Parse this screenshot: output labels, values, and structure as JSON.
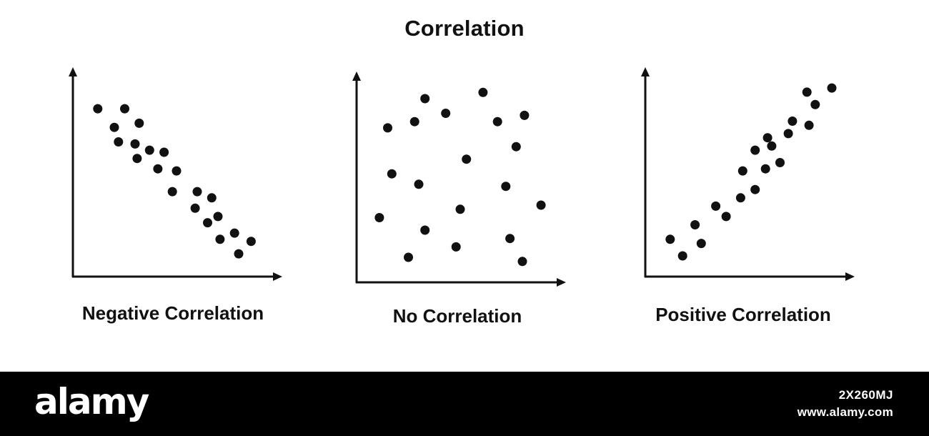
{
  "title": "Correlation",
  "colors": {
    "marker": "#111111",
    "axis": "#111111",
    "background": "#ffffff",
    "footer": "#000000",
    "footer_text": "#ffffff"
  },
  "chart_data": [
    {
      "type": "scatter",
      "title": "Negative Correlation",
      "xlabel": "",
      "ylabel": "",
      "xlim": [
        0,
        100
      ],
      "ylim": [
        0,
        100
      ],
      "ticks": false,
      "grid": false,
      "points": [
        [
          12,
          81
        ],
        [
          25,
          81
        ],
        [
          20,
          72
        ],
        [
          32,
          74
        ],
        [
          22,
          65
        ],
        [
          30,
          64
        ],
        [
          37,
          61
        ],
        [
          44,
          60
        ],
        [
          31,
          57
        ],
        [
          41,
          52
        ],
        [
          50,
          51
        ],
        [
          48,
          41
        ],
        [
          60,
          41
        ],
        [
          67,
          38
        ],
        [
          59,
          33
        ],
        [
          70,
          29
        ],
        [
          65,
          26
        ],
        [
          71,
          18
        ],
        [
          78,
          21
        ],
        [
          86,
          17
        ],
        [
          80,
          11
        ]
      ]
    },
    {
      "type": "scatter",
      "title": "No Correlation",
      "xlabel": "",
      "ylabel": "",
      "xlim": [
        0,
        100
      ],
      "ylim": [
        0,
        100
      ],
      "ticks": false,
      "grid": false,
      "points": [
        [
          15,
          74
        ],
        [
          28,
          77
        ],
        [
          33,
          88
        ],
        [
          43,
          81
        ],
        [
          61,
          91
        ],
        [
          68,
          77
        ],
        [
          81,
          80
        ],
        [
          77,
          65
        ],
        [
          53,
          59
        ],
        [
          17,
          52
        ],
        [
          30,
          47
        ],
        [
          72,
          46
        ],
        [
          50,
          35
        ],
        [
          11,
          31
        ],
        [
          89,
          37
        ],
        [
          33,
          25
        ],
        [
          74,
          21
        ],
        [
          48,
          17
        ],
        [
          25,
          12
        ],
        [
          80,
          10
        ]
      ]
    },
    {
      "type": "scatter",
      "title": "Positive Correlation",
      "xlabel": "",
      "ylabel": "",
      "xlim": [
        0,
        100
      ],
      "ylim": [
        0,
        100
      ],
      "ticks": false,
      "grid": false,
      "points": [
        [
          12,
          18
        ],
        [
          18,
          10
        ],
        [
          24,
          25
        ],
        [
          27,
          16
        ],
        [
          34,
          34
        ],
        [
          39,
          29
        ],
        [
          46,
          38
        ],
        [
          47,
          51
        ],
        [
          53,
          42
        ],
        [
          53,
          61
        ],
        [
          58,
          52
        ],
        [
          59,
          67
        ],
        [
          61,
          63
        ],
        [
          65,
          55
        ],
        [
          69,
          69
        ],
        [
          71,
          75
        ],
        [
          79,
          73
        ],
        [
          82,
          83
        ],
        [
          78,
          89
        ],
        [
          90,
          91
        ]
      ]
    }
  ],
  "footer": {
    "brand": "alamy",
    "image_id": "2X260MJ",
    "url": "www.alamy.com"
  }
}
